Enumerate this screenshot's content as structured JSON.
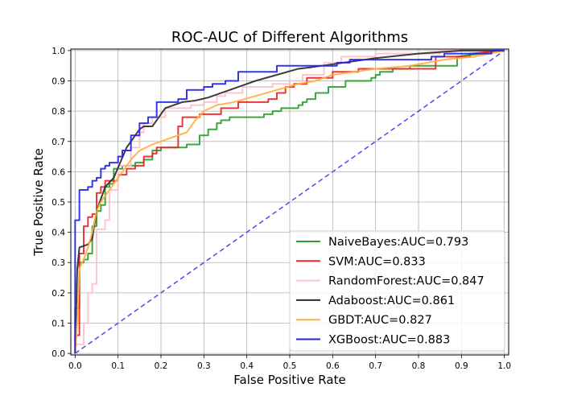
{
  "chart_data": {
    "type": "line",
    "title": "ROC-AUC of Different Algorithms",
    "xlabel": "False Positive Rate",
    "ylabel": "True Positive Rate",
    "xlim": [
      0.0,
      1.0
    ],
    "ylim": [
      0.0,
      1.0
    ],
    "xticks": [
      "0.0",
      "0.1",
      "0.2",
      "0.3",
      "0.4",
      "0.5",
      "0.6",
      "0.7",
      "0.8",
      "0.9",
      "1.0"
    ],
    "yticks": [
      "0.0",
      "0.1",
      "0.2",
      "0.3",
      "0.4",
      "0.5",
      "0.6",
      "0.7",
      "0.8",
      "0.9",
      "1.0"
    ],
    "grid": true,
    "legend_position": "lower-right",
    "diagonal": {
      "x": [
        0,
        1
      ],
      "y": [
        0,
        1
      ],
      "color": "#4a4aee",
      "style": "dashed"
    },
    "series": [
      {
        "name": "NaiveBayes:AUC=0.793",
        "color": "#2ca02c",
        "step": true,
        "x": [
          0.0,
          0.0,
          0.01,
          0.01,
          0.02,
          0.02,
          0.03,
          0.03,
          0.04,
          0.04,
          0.05,
          0.05,
          0.06,
          0.06,
          0.07,
          0.07,
          0.08,
          0.08,
          0.09,
          0.09,
          0.11,
          0.11,
          0.14,
          0.14,
          0.16,
          0.16,
          0.18,
          0.18,
          0.2,
          0.2,
          0.26,
          0.26,
          0.29,
          0.29,
          0.31,
          0.31,
          0.33,
          0.33,
          0.34,
          0.34,
          0.36,
          0.36,
          0.44,
          0.44,
          0.46,
          0.46,
          0.48,
          0.48,
          0.52,
          0.52,
          0.53,
          0.53,
          0.54,
          0.54,
          0.56,
          0.56,
          0.59,
          0.59,
          0.63,
          0.63,
          0.69,
          0.69,
          0.7,
          0.7,
          0.71,
          0.71,
          0.74,
          0.74,
          0.78,
          0.78,
          0.89,
          0.89,
          1.0
        ],
        "y": [
          0.0,
          0.15,
          0.15,
          0.3,
          0.3,
          0.31,
          0.31,
          0.33,
          0.33,
          0.42,
          0.42,
          0.47,
          0.47,
          0.49,
          0.49,
          0.55,
          0.55,
          0.56,
          0.56,
          0.61,
          0.61,
          0.62,
          0.62,
          0.63,
          0.63,
          0.64,
          0.64,
          0.67,
          0.67,
          0.68,
          0.68,
          0.69,
          0.69,
          0.72,
          0.72,
          0.74,
          0.74,
          0.76,
          0.76,
          0.77,
          0.77,
          0.78,
          0.78,
          0.79,
          0.79,
          0.8,
          0.8,
          0.81,
          0.81,
          0.82,
          0.82,
          0.83,
          0.83,
          0.84,
          0.84,
          0.86,
          0.86,
          0.88,
          0.88,
          0.9,
          0.9,
          0.91,
          0.91,
          0.92,
          0.92,
          0.93,
          0.93,
          0.94,
          0.94,
          0.95,
          0.95,
          0.98,
          1.0
        ]
      },
      {
        "name": "SVM:AUC=0.833",
        "color": "#e8262a",
        "step": true,
        "x": [
          0.0,
          0.0,
          0.01,
          0.01,
          0.02,
          0.02,
          0.03,
          0.03,
          0.04,
          0.04,
          0.05,
          0.05,
          0.06,
          0.06,
          0.07,
          0.07,
          0.1,
          0.1,
          0.12,
          0.12,
          0.14,
          0.14,
          0.16,
          0.16,
          0.18,
          0.18,
          0.19,
          0.19,
          0.24,
          0.24,
          0.25,
          0.25,
          0.29,
          0.29,
          0.34,
          0.34,
          0.38,
          0.38,
          0.45,
          0.45,
          0.47,
          0.47,
          0.49,
          0.49,
          0.51,
          0.51,
          0.54,
          0.54,
          0.6,
          0.6,
          0.66,
          0.66,
          0.84,
          0.84,
          0.92,
          0.92,
          1.0
        ],
        "y": [
          0.0,
          0.06,
          0.06,
          0.33,
          0.33,
          0.42,
          0.42,
          0.45,
          0.45,
          0.46,
          0.46,
          0.53,
          0.53,
          0.55,
          0.55,
          0.57,
          0.57,
          0.59,
          0.59,
          0.61,
          0.61,
          0.62,
          0.62,
          0.65,
          0.65,
          0.66,
          0.66,
          0.68,
          0.68,
          0.75,
          0.75,
          0.78,
          0.78,
          0.79,
          0.79,
          0.81,
          0.81,
          0.83,
          0.83,
          0.84,
          0.84,
          0.86,
          0.86,
          0.88,
          0.88,
          0.89,
          0.89,
          0.91,
          0.91,
          0.93,
          0.93,
          0.94,
          0.94,
          0.98,
          0.98,
          0.99,
          1.0
        ]
      },
      {
        "name": "RandomForest:AUC=0.847",
        "color": "#ffc0cb",
        "step": true,
        "x": [
          0.0,
          0.0,
          0.02,
          0.02,
          0.03,
          0.03,
          0.04,
          0.04,
          0.05,
          0.05,
          0.07,
          0.07,
          0.08,
          0.08,
          0.1,
          0.1,
          0.13,
          0.13,
          0.15,
          0.15,
          0.16,
          0.16,
          0.18,
          0.18,
          0.21,
          0.21,
          0.27,
          0.27,
          0.3,
          0.3,
          0.33,
          0.33,
          0.35,
          0.35,
          0.39,
          0.39,
          0.46,
          0.46,
          0.5,
          0.5,
          0.53,
          0.53,
          0.58,
          0.58,
          0.62,
          0.62,
          0.7,
          0.7,
          0.85,
          0.85,
          1.0
        ],
        "y": [
          0.0,
          0.03,
          0.03,
          0.1,
          0.1,
          0.2,
          0.2,
          0.23,
          0.23,
          0.41,
          0.41,
          0.44,
          0.44,
          0.54,
          0.54,
          0.62,
          0.62,
          0.68,
          0.68,
          0.73,
          0.73,
          0.76,
          0.76,
          0.78,
          0.78,
          0.81,
          0.81,
          0.82,
          0.82,
          0.83,
          0.83,
          0.85,
          0.85,
          0.86,
          0.86,
          0.88,
          0.88,
          0.89,
          0.89,
          0.9,
          0.9,
          0.92,
          0.92,
          0.96,
          0.96,
          0.98,
          0.98,
          0.99,
          0.99,
          1.0,
          1.0
        ]
      },
      {
        "name": "Adaboost:AUC=0.861",
        "color": "#2b2b2b",
        "step": false,
        "x": [
          0.0,
          0.005,
          0.01,
          0.03,
          0.04,
          0.05,
          0.07,
          0.09,
          0.12,
          0.15,
          0.16,
          0.18,
          0.19,
          0.21,
          0.23,
          0.25,
          0.28,
          0.31,
          0.34,
          0.38,
          0.42,
          0.47,
          0.52,
          0.55,
          0.6,
          0.65,
          0.7,
          0.8,
          0.9,
          1.0
        ],
        "y": [
          0.0,
          0.28,
          0.35,
          0.36,
          0.38,
          0.47,
          0.55,
          0.58,
          0.68,
          0.74,
          0.75,
          0.75,
          0.77,
          0.81,
          0.82,
          0.83,
          0.835,
          0.845,
          0.86,
          0.88,
          0.9,
          0.92,
          0.94,
          0.945,
          0.955,
          0.965,
          0.975,
          0.99,
          1.0,
          1.0
        ]
      },
      {
        "name": "GBDT:AUC=0.827",
        "color": "#ffb03b",
        "step": false,
        "x": [
          0.0,
          0.005,
          0.01,
          0.02,
          0.03,
          0.04,
          0.05,
          0.06,
          0.08,
          0.1,
          0.13,
          0.15,
          0.18,
          0.22,
          0.26,
          0.28,
          0.3,
          0.33,
          0.37,
          0.42,
          0.47,
          0.52,
          0.56,
          0.6,
          0.65,
          0.7,
          0.78,
          0.86,
          0.93,
          1.0
        ],
        "y": [
          0.0,
          0.1,
          0.28,
          0.31,
          0.35,
          0.4,
          0.47,
          0.5,
          0.54,
          0.58,
          0.64,
          0.67,
          0.69,
          0.71,
          0.73,
          0.77,
          0.8,
          0.82,
          0.83,
          0.85,
          0.87,
          0.89,
          0.9,
          0.92,
          0.93,
          0.94,
          0.95,
          0.97,
          0.98,
          1.0
        ]
      },
      {
        "name": "XGBoost:AUC=0.883",
        "color": "#2525e6",
        "step": true,
        "x": [
          0.0,
          0.0,
          0.01,
          0.01,
          0.03,
          0.03,
          0.04,
          0.04,
          0.05,
          0.05,
          0.06,
          0.06,
          0.07,
          0.07,
          0.08,
          0.08,
          0.1,
          0.1,
          0.11,
          0.11,
          0.13,
          0.13,
          0.15,
          0.15,
          0.17,
          0.17,
          0.19,
          0.19,
          0.24,
          0.24,
          0.26,
          0.26,
          0.3,
          0.3,
          0.32,
          0.32,
          0.35,
          0.35,
          0.38,
          0.38,
          0.47,
          0.47,
          0.61,
          0.61,
          0.64,
          0.64,
          0.83,
          0.83,
          0.86,
          0.86,
          0.97,
          0.97,
          1.0
        ],
        "y": [
          0.0,
          0.44,
          0.44,
          0.54,
          0.54,
          0.55,
          0.55,
          0.57,
          0.57,
          0.58,
          0.58,
          0.61,
          0.61,
          0.62,
          0.62,
          0.63,
          0.63,
          0.65,
          0.65,
          0.67,
          0.67,
          0.72,
          0.72,
          0.76,
          0.76,
          0.78,
          0.78,
          0.83,
          0.83,
          0.84,
          0.84,
          0.87,
          0.87,
          0.88,
          0.88,
          0.89,
          0.89,
          0.9,
          0.9,
          0.93,
          0.93,
          0.95,
          0.95,
          0.96,
          0.96,
          0.97,
          0.97,
          0.98,
          0.98,
          0.99,
          0.99,
          1.0,
          1.0
        ]
      }
    ]
  }
}
